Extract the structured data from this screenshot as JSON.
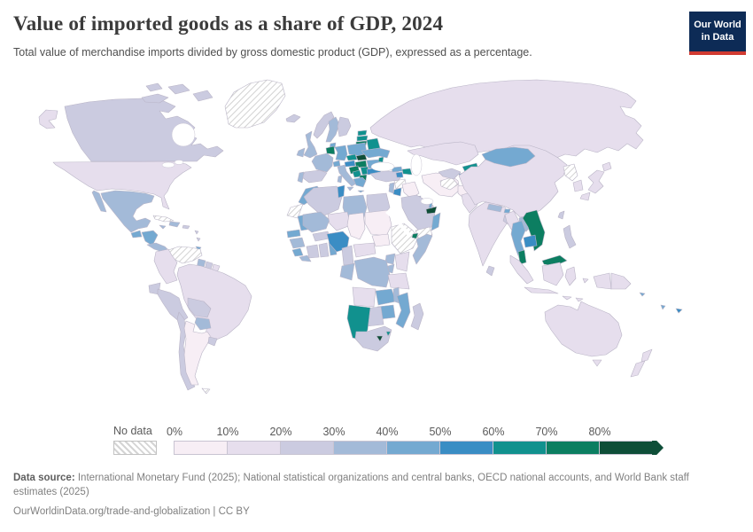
{
  "header": {
    "title": "Value of imported goods as a share of GDP, 2024",
    "subtitle": "Total value of merchandise imports divided by gross domestic product (GDP), expressed as a percentage.",
    "logo_line1": "Our World",
    "logo_line2": "in Data",
    "logo_bg": "#0d2b56",
    "logo_accent": "#d13b32"
  },
  "legend": {
    "no_data_label": "No data",
    "tick_labels": [
      "0%",
      "10%",
      "20%",
      "30%",
      "40%",
      "50%",
      "60%",
      "70%",
      "80%"
    ],
    "bin_ranges": [
      "0-10%",
      "10-20%",
      "20-30%",
      "30-40%",
      "40-50%",
      "50-60%",
      "60-70%",
      "70-80%",
      "80%+"
    ],
    "colors": [
      "#f7eef5",
      "#e6deed",
      "#cbcbe0",
      "#a3bad8",
      "#74a9d1",
      "#3a8dc4",
      "#11918e",
      "#0c7e61",
      "#0e4e38"
    ],
    "max_arrow": true
  },
  "map": {
    "border_color": "#b9b4c6",
    "ocean_color": "#ffffff",
    "no_data_pattern": "diagonal-hatch",
    "bins": {
      "greenland": "nd",
      "canada": 2,
      "alaska": 1,
      "usa": 1,
      "mexico": 3,
      "guatemala": 4,
      "honduras-nicaragua": 4,
      "costa-rica-panama": 3,
      "cuba": "nd",
      "jamaica": 3,
      "hispaniola": 3,
      "puerto-rico": 2,
      "lesser-antilles": 2,
      "trinidad": 4,
      "venezuela": "nd",
      "colombia": 1,
      "guyana": 3,
      "suriname": 2,
      "french-guiana": 1,
      "ecuador": 2,
      "peru": 2,
      "brazil": 1,
      "bolivia": 2,
      "paraguay": 3,
      "chile": 2,
      "argentina": 0,
      "uruguay": 2,
      "falkland-islands": "nd",
      "iceland": 2,
      "uk": 3,
      "ireland": 3,
      "norway": 2,
      "sweden": 3,
      "finland": 2,
      "denmark": 4,
      "estonia": 6,
      "latvia": 6,
      "lithuania": 7,
      "belarus": 6,
      "poland": 4,
      "germany": 4,
      "benelux": 7,
      "france": 3,
      "spain": 2,
      "portugal": 3,
      "switzerland": 4,
      "italy": 3,
      "czechia": 6,
      "slovakia": 8,
      "austria": 5,
      "hungary": 7,
      "slovenia-croatia": 7,
      "bosnia": 6,
      "serbia": 6,
      "albania-macedonia": 7,
      "greece": 4,
      "romania": 4,
      "moldova": 6,
      "bulgaria": 5,
      "ukraine": 4,
      "russia": 1,
      "turkey": 2,
      "georgia": 4,
      "azerbaijan": 6,
      "armenia": 5,
      "cyprus": 3,
      "syria": "nd",
      "lebanon-israel": 3,
      "jordan": 5,
      "iraq": 0,
      "kuwait": 3,
      "saudi-arabia": 2,
      "yemen": "nd",
      "oman": 4,
      "uae": 8,
      "qatar": 4,
      "iran": 0,
      "afghanistan": 0,
      "turkmenistan": "nd",
      "uzbekistan": 2,
      "kazakhstan": 1,
      "kyrgyzstan": 6,
      "tajikistan": 4,
      "pakistan": 1,
      "india": 1,
      "nepal": 3,
      "bhutan": 4,
      "bangladesh": 2,
      "sri-lanka": 2,
      "china": 1,
      "mongolia": 4,
      "myanmar": 1,
      "laos": 3,
      "vietnam": 7,
      "thailand": 4,
      "cambodia": 5,
      "malaysia": 7,
      "indonesia": 1,
      "philippines": 2,
      "taiwan": 2,
      "japan": 1,
      "south-korea": 1,
      "north-korea": "nd",
      "morocco": 4,
      "western-sahara": "nd",
      "algeria": 2,
      "tunisia": 5,
      "libya": 3,
      "egypt": 2,
      "mauritania": 4,
      "mali": 3,
      "senegal": 4,
      "guinea": 3,
      "sierra-leone": 4,
      "liberia": 3,
      "burkina-faso": 2,
      "ivory-coast": 2,
      "ghana": 2,
      "togo-benin": 4,
      "niger": 1,
      "nigeria": 5,
      "chad": 0,
      "sudan": 0,
      "south-sudan": 0,
      "ethiopia-eritrea": "nd",
      "djibouti": 7,
      "somalia": 3,
      "kenya": 1,
      "uganda": 3,
      "rwanda-burundi": 3,
      "cameroon": 2,
      "central-african-republic": 1,
      "congo-gabon": 3,
      "drc": 3,
      "tanzania": 1,
      "angola": 1,
      "zambia": 4,
      "malawi": 3,
      "mozambique": 4,
      "zimbabwe": 4,
      "botswana": 2,
      "namibia": 6,
      "south-africa": 2,
      "lesotho": 8,
      "eswatini": 6,
      "madagascar": 2,
      "australia": 1,
      "new-zealand": 1,
      "papua-new-guinea": 1,
      "fiji": 5,
      "vanuatu": 4,
      "solomon-islands": 4
    }
  },
  "footer": {
    "source_bold": "Data source:",
    "source_rest": " International Monetary Fund (2025); National statistical organizations and central banks, OECD national accounts, and World Bank staff estimates (2025)",
    "link_line": "OurWorldinData.org/trade-and-globalization | CC BY"
  }
}
